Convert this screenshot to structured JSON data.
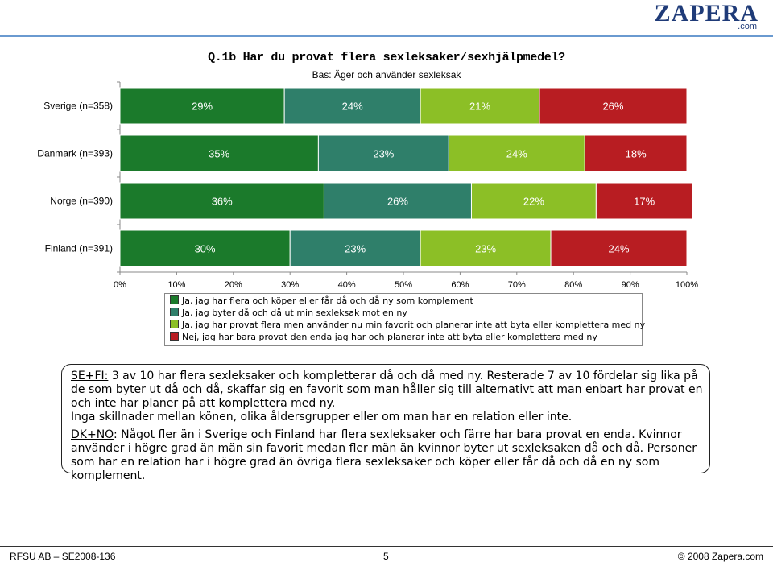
{
  "brand": {
    "main": "ZAPERA",
    "sub": ".com"
  },
  "title": "Q.1b Har du provat flera sexleksaker/sexhjälpmedel?",
  "subtitle": "Bas: Äger och använder sexleksak",
  "colors": {
    "s1": "#1b7a2b",
    "s2": "#2f7f6a",
    "s3": "#8cbf26",
    "s4": "#b81d22"
  },
  "chart_data": {
    "type": "bar",
    "orientation": "horizontal",
    "stacked": true,
    "categories": [
      "Sverige (n=358)",
      "Danmark (n=393)",
      "Norge (n=390)",
      "Finland (n=391)"
    ],
    "series": [
      {
        "name": "Ja, jag har flera och köper eller får då och då ny som komplement",
        "values": [
          29,
          35,
          36,
          30
        ]
      },
      {
        "name": "Ja, jag byter då och då ut min sexleksak mot en ny",
        "values": [
          24,
          23,
          26,
          23
        ]
      },
      {
        "name": "Ja, jag har provat flera men använder nu min favorit och planerar inte att byta eller komplettera med ny",
        "values": [
          21,
          24,
          22,
          23
        ]
      },
      {
        "name": "Nej, jag har bara provat den enda jag har och planerar inte att byta eller komplettera med ny",
        "values": [
          26,
          18,
          17,
          24
        ]
      }
    ],
    "labels": [
      [
        "29%",
        "24%",
        "21%",
        "26%"
      ],
      [
        "35%",
        "23%",
        "24%",
        "18%"
      ],
      [
        "36%",
        "26%",
        "22%",
        "17%"
      ],
      [
        "30%",
        "23%",
        "23%",
        "24%"
      ]
    ],
    "xticks": [
      "0%",
      "10%",
      "20%",
      "30%",
      "40%",
      "50%",
      "60%",
      "70%",
      "80%",
      "90%",
      "100%"
    ],
    "xlim": [
      0,
      100
    ],
    "legend": "bottom"
  },
  "note": {
    "p1_label": "SE+FI:",
    "p1_text": " 3 av 10 har flera sexleksaker och kompletterar då och då med ny. Resterade 7 av 10 fördelar sig lika på de som byter ut då och då, skaffar sig en favorit som man håller sig till alternativt att man enbart har provat en och inte har planer på att komplettera med ny.",
    "p2_text": "Inga skillnader mellan könen, olika åldersgrupper eller om man har en relation eller inte.",
    "p3_label": "DK+NO",
    "p3_text": ": Något fler än i Sverige och Finland har flera sexleksaker och färre har bara provat en enda. Kvinnor använder i högre grad än män sin favorit medan fler män än kvinnor byter ut sexleksaken då och då. Personer som har en relation har i högre grad än övriga flera sexleksaker och köper eller får då och då en ny som komplement."
  },
  "footer": {
    "left": "RFSU AB – SE2008-136",
    "page": "5",
    "right": "© 2008 Zapera.com"
  }
}
